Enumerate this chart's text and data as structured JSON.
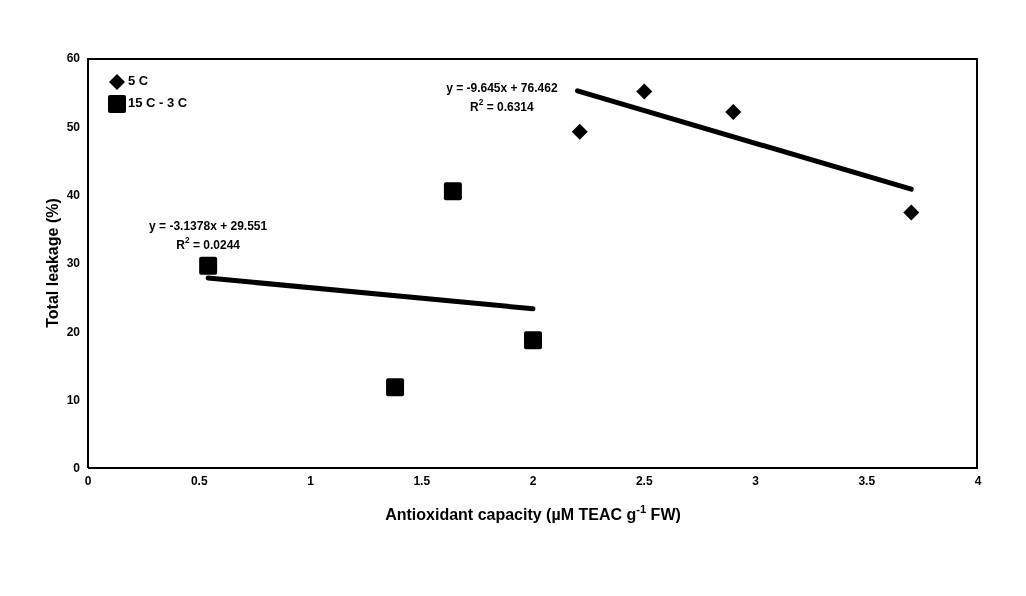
{
  "chart_data": {
    "type": "scatter",
    "xlabel": "Antioxidant capacity (µM TEAC g$^{-1}$ FW)",
    "ylabel": "Total leakage (%)",
    "xlim": [
      0,
      4
    ],
    "xticks": [
      0,
      0.5,
      1,
      1.5,
      2,
      2.5,
      3,
      3.5,
      4
    ],
    "ylim": [
      0,
      60
    ],
    "yticks": [
      0,
      10,
      20,
      30,
      40,
      50,
      60
    ],
    "grid": false,
    "legend": "top left",
    "series": [
      {
        "name": "5 C",
        "color": "#000000",
        "marker": "diamond",
        "x": [
          2.21,
          2.5,
          2.9,
          3.7
        ],
        "values": [
          49.2,
          55.1,
          52.1,
          37.4
        ]
      },
      {
        "name": "15 C - 3 C",
        "color": "#000000",
        "marker": "square",
        "x": [
          0.54,
          1.38,
          1.64,
          2.0
        ],
        "values": [
          29.6,
          11.8,
          40.5,
          18.7
        ]
      },
      {
        "type": "line",
        "color": "#000000",
        "marker": "none",
        "x": [
          2.2,
          3.7
        ],
        "values": [
          55.2,
          40.8
        ]
      },
      {
        "type": "line",
        "color": "#000000",
        "marker": "none",
        "x": [
          0.54,
          2.0
        ],
        "values": [
          27.8,
          23.3
        ]
      }
    ],
    "annotations": [
      "y = -9.645x + 76.462",
      "R$^{2}$ = 0.6314",
      "y = -3.1378x + 29.551",
      "R$^{2}$ = 0.0244"
    ]
  }
}
